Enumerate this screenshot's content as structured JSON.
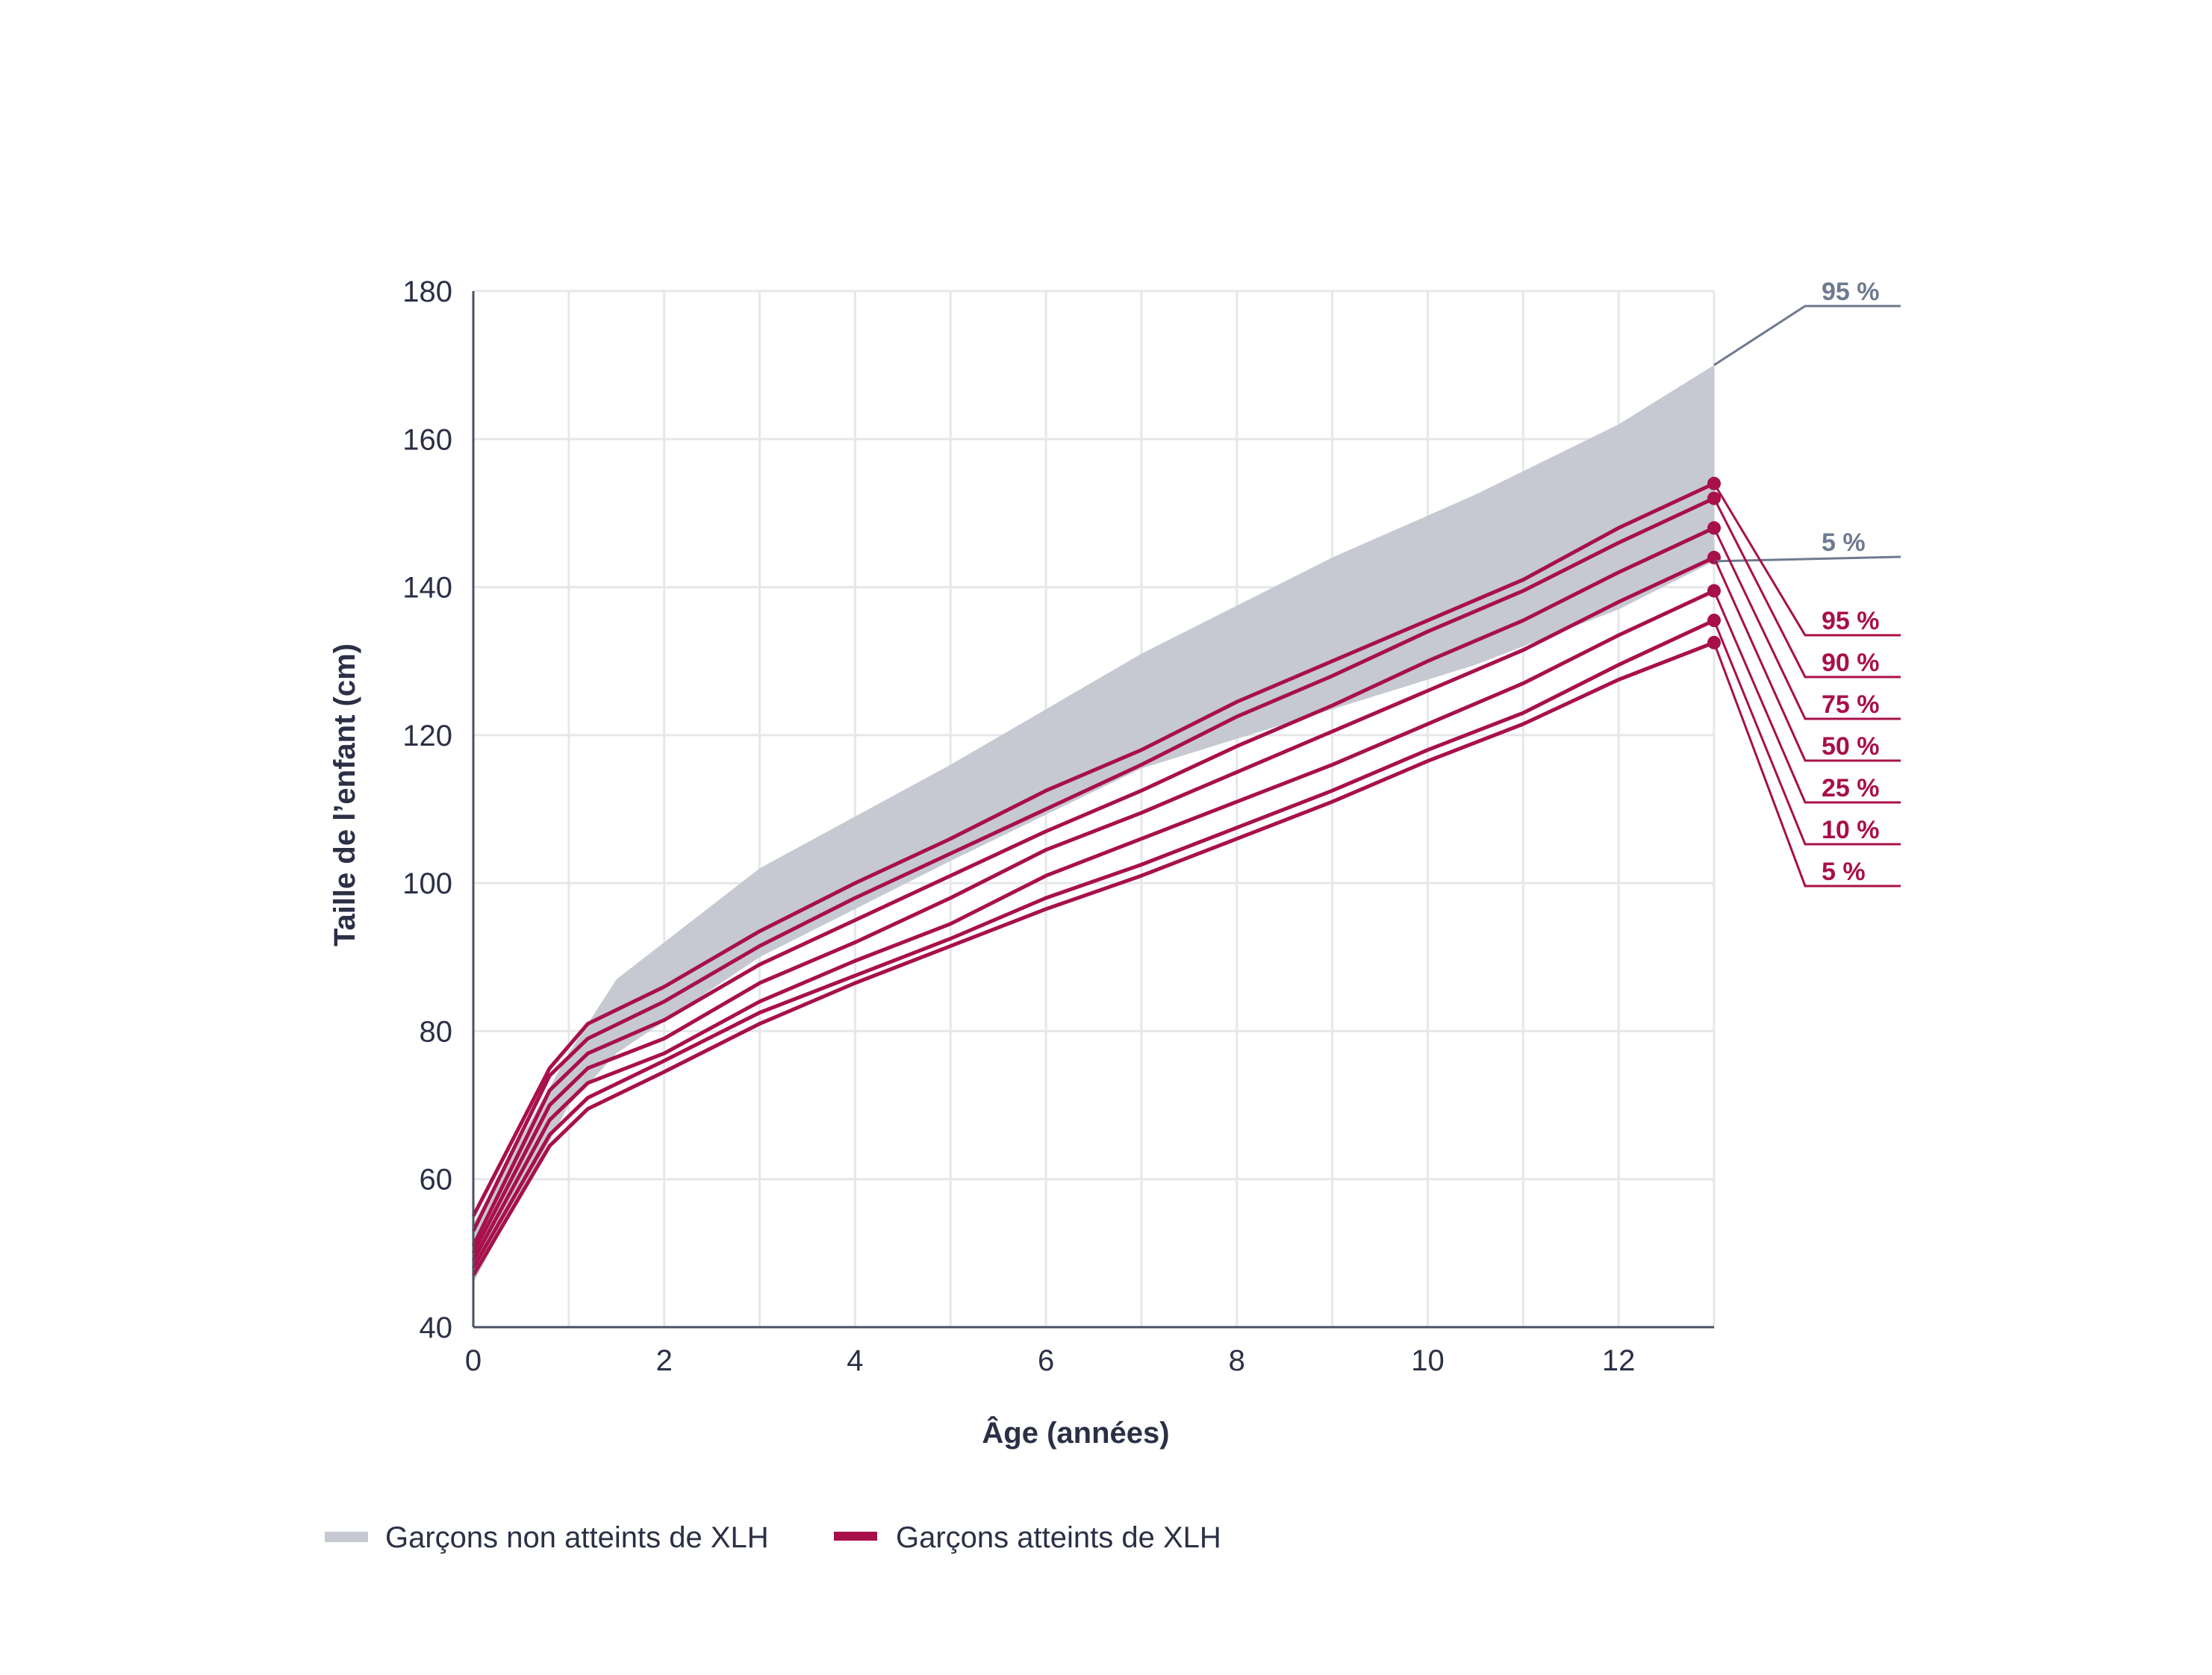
{
  "colors": {
    "band": "#c6c9d1",
    "band_label": "#6e7a8e",
    "xlh_line": "#a8104a",
    "grid": "#e6e7ea",
    "axis": "#4a5064",
    "text": "#2b3046"
  },
  "legend": {
    "unaffected_label": "Garçons non atteints de XLH",
    "affected_label": "Garçons atteints de XLH"
  },
  "chart_data": {
    "type": "line",
    "xlabel": "Âge (années)",
    "ylabel": "Taille de l’enfant (cm)",
    "xlim": [
      0,
      13
    ],
    "ylim": [
      40,
      180
    ],
    "xticks": [
      "0",
      "2",
      "4",
      "6",
      "8",
      "10",
      "12"
    ],
    "yticks": [
      "40",
      "60",
      "80",
      "100",
      "120",
      "140",
      "160",
      "180"
    ],
    "grid": true,
    "reference_band": {
      "name": "Garçons non atteints de XLH",
      "upper_label": "95 %",
      "lower_label": "5 %",
      "upper": [
        [
          0,
          54
        ],
        [
          1,
          77
        ],
        [
          1.5,
          87
        ],
        [
          3,
          102
        ],
        [
          5,
          116
        ],
        [
          7,
          131
        ],
        [
          9,
          144
        ],
        [
          10.5,
          152.5
        ],
        [
          12,
          162
        ],
        [
          13,
          170
        ]
      ],
      "lower": [
        [
          0,
          46
        ],
        [
          1,
          70
        ],
        [
          1.5,
          77
        ],
        [
          3,
          90
        ],
        [
          5,
          103
        ],
        [
          7,
          115.5
        ],
        [
          9,
          123.5
        ],
        [
          10.5,
          129.5
        ],
        [
          12,
          137
        ],
        [
          13,
          143.5
        ]
      ]
    },
    "series": [
      {
        "name": "95 %",
        "values": [
          [
            0,
            55
          ],
          [
            0.8,
            75
          ],
          [
            1.2,
            81
          ],
          [
            2,
            86
          ],
          [
            3,
            93.5
          ],
          [
            4,
            100
          ],
          [
            5,
            106
          ],
          [
            6,
            112.5
          ],
          [
            7,
            118
          ],
          [
            8,
            124.5
          ],
          [
            9,
            130
          ],
          [
            10,
            135.5
          ],
          [
            11,
            141
          ],
          [
            12,
            148
          ],
          [
            13,
            154
          ]
        ]
      },
      {
        "name": "90 %",
        "values": [
          [
            0,
            53
          ],
          [
            0.8,
            74
          ],
          [
            1.2,
            79
          ],
          [
            2,
            84
          ],
          [
            3,
            91.5
          ],
          [
            4,
            98
          ],
          [
            5,
            104
          ],
          [
            6,
            110
          ],
          [
            7,
            116
          ],
          [
            8,
            122.5
          ],
          [
            9,
            128
          ],
          [
            10,
            134
          ],
          [
            11,
            139.5
          ],
          [
            12,
            146
          ],
          [
            13,
            152
          ]
        ]
      },
      {
        "name": "75 %",
        "values": [
          [
            0,
            51
          ],
          [
            0.8,
            72
          ],
          [
            1.2,
            77
          ],
          [
            2,
            81.5
          ],
          [
            3,
            89
          ],
          [
            4,
            95
          ],
          [
            5,
            101
          ],
          [
            6,
            107
          ],
          [
            7,
            112.5
          ],
          [
            8,
            118.5
          ],
          [
            9,
            124
          ],
          [
            10,
            130
          ],
          [
            11,
            135.5
          ],
          [
            12,
            142
          ],
          [
            13,
            148
          ]
        ]
      },
      {
        "name": "50 %",
        "values": [
          [
            0,
            50
          ],
          [
            0.8,
            70
          ],
          [
            1.2,
            75
          ],
          [
            2,
            79
          ],
          [
            3,
            86.5
          ],
          [
            4,
            92
          ],
          [
            5,
            98
          ],
          [
            6,
            104.5
          ],
          [
            7,
            109.5
          ],
          [
            8,
            115
          ],
          [
            9,
            120.5
          ],
          [
            10,
            126
          ],
          [
            11,
            131.5
          ],
          [
            12,
            138
          ],
          [
            13,
            144
          ]
        ]
      },
      {
        "name": "25 %",
        "values": [
          [
            0,
            49
          ],
          [
            0.8,
            68
          ],
          [
            1.2,
            73
          ],
          [
            2,
            77
          ],
          [
            3,
            84
          ],
          [
            4,
            89.5
          ],
          [
            5,
            94.5
          ],
          [
            6,
            101
          ],
          [
            7,
            106
          ],
          [
            8,
            111
          ],
          [
            9,
            116
          ],
          [
            10,
            121.5
          ],
          [
            11,
            127
          ],
          [
            12,
            133.5
          ],
          [
            13,
            139.5
          ]
        ]
      },
      {
        "name": "10 %",
        "values": [
          [
            0,
            48
          ],
          [
            0.8,
            66
          ],
          [
            1.2,
            71
          ],
          [
            2,
            76
          ],
          [
            3,
            82.5
          ],
          [
            4,
            87.5
          ],
          [
            5,
            92.5
          ],
          [
            6,
            98
          ],
          [
            7,
            102.5
          ],
          [
            8,
            107.5
          ],
          [
            9,
            112.5
          ],
          [
            10,
            118
          ],
          [
            11,
            123
          ],
          [
            12,
            129.5
          ],
          [
            13,
            135.5
          ]
        ]
      },
      {
        "name": "5 %",
        "values": [
          [
            0,
            47
          ],
          [
            0.8,
            64.5
          ],
          [
            1.2,
            69.5
          ],
          [
            2,
            74.5
          ],
          [
            3,
            81
          ],
          [
            4,
            86.5
          ],
          [
            5,
            91.5
          ],
          [
            6,
            96.5
          ],
          [
            7,
            101
          ],
          [
            8,
            106
          ],
          [
            9,
            111
          ],
          [
            10,
            116.5
          ],
          [
            11,
            121.5
          ],
          [
            12,
            127.5
          ],
          [
            13,
            132.5
          ]
        ]
      }
    ]
  }
}
